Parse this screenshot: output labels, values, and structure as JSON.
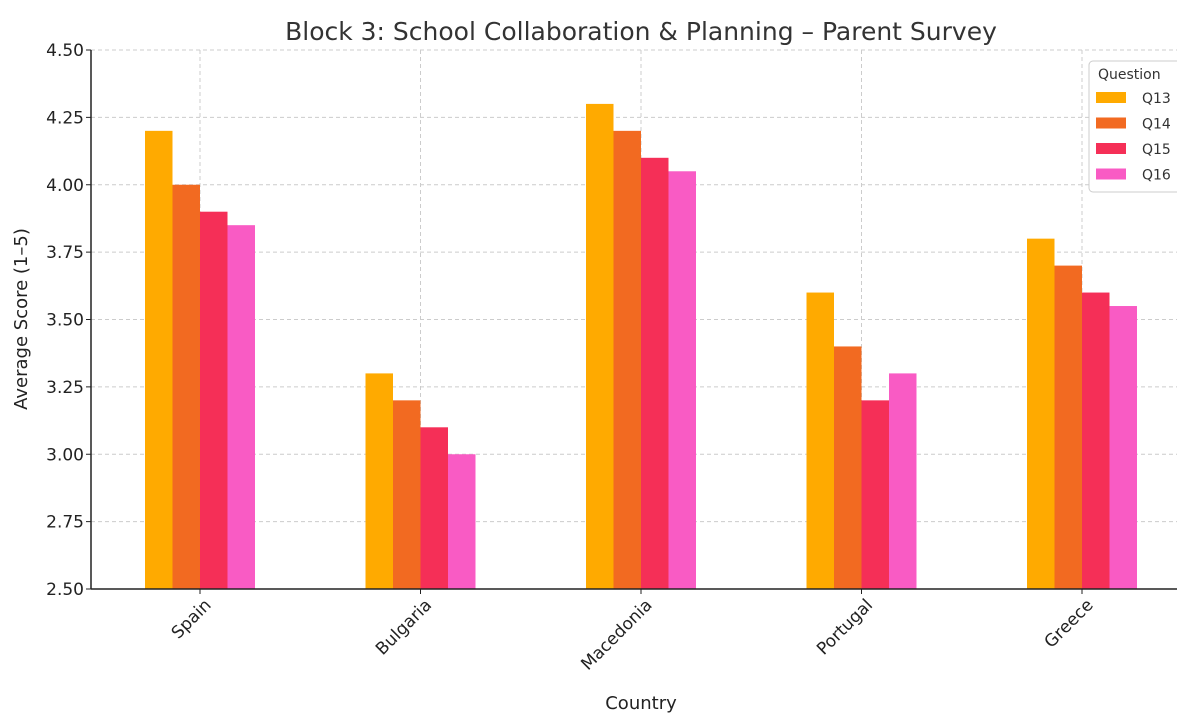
{
  "chart_data": {
    "type": "bar",
    "title": "Block 3: School Collaboration & Planning – Parent Survey",
    "xlabel": "Country",
    "ylabel": "Average Score (1–5)",
    "ylim": [
      2.5,
      4.5
    ],
    "yticks": [
      "2.50",
      "2.75",
      "3.00",
      "3.25",
      "3.50",
      "3.75",
      "4.00",
      "4.25",
      "4.50"
    ],
    "categories": [
      "Spain",
      "Bulgaria",
      "Macedonia",
      "Portugal",
      "Greece"
    ],
    "series": [
      {
        "name": "Q13",
        "color": "#FFAA00",
        "values": [
          4.2,
          3.3,
          4.3,
          3.6,
          3.8
        ]
      },
      {
        "name": "Q14",
        "color": "#F26A21",
        "values": [
          4.0,
          3.2,
          4.2,
          3.4,
          3.7
        ]
      },
      {
        "name": "Q15",
        "color": "#F52F57",
        "values": [
          3.9,
          3.1,
          4.1,
          3.2,
          3.6
        ]
      },
      {
        "name": "Q16",
        "color": "#F95BC4",
        "values": [
          3.85,
          3.0,
          4.05,
          3.3,
          3.55
        ]
      }
    ],
    "legend": {
      "title": "Question",
      "position": "top-right"
    },
    "grid": true
  }
}
